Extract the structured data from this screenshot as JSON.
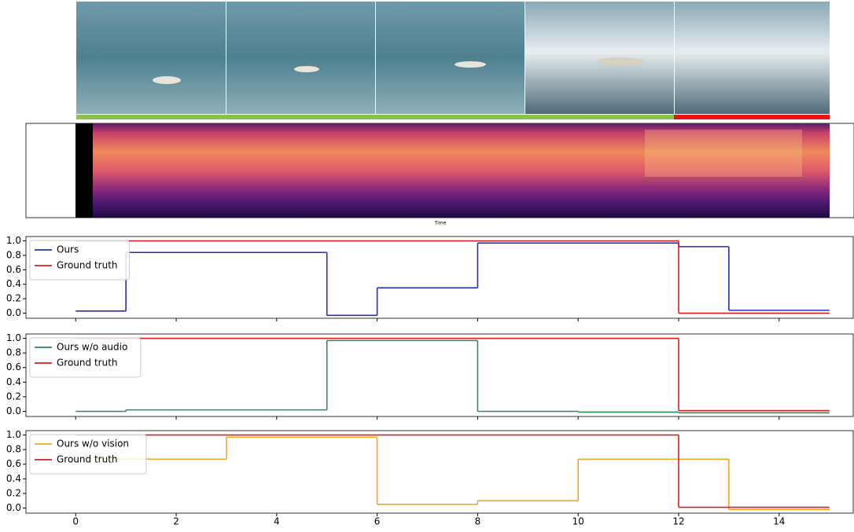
{
  "spectrogram": {
    "xlabel": "Time"
  },
  "chart_data": [
    {
      "type": "step",
      "xlim": [
        -0.99,
        15.49
      ],
      "ylim": [
        -0.07,
        1.06
      ],
      "xticks": [
        0,
        2,
        4,
        6,
        8,
        10,
        12,
        14
      ],
      "yticks": [
        {
          "value": 0,
          "label": "0.0"
        },
        0.2,
        0.4,
        0.6,
        0.8,
        {
          "value": 1,
          "label": "1.0"
        }
      ],
      "legend": "upper left",
      "series": [
        {
          "name": "Ours",
          "color": "#2b2bb5",
          "x": [
            0,
            1,
            5,
            6,
            8,
            12,
            13,
            15
          ],
          "values": [
            0.03,
            0.84,
            -0.03,
            0.35,
            0.97,
            0.92,
            0.04,
            0.04
          ]
        },
        {
          "name": "Ground truth",
          "color": "#d62020",
          "x": [
            0,
            12,
            15
          ],
          "values": [
            1.0,
            0.0,
            0.0
          ]
        }
      ]
    },
    {
      "type": "step",
      "xlim": [
        -0.99,
        15.49
      ],
      "ylim": [
        -0.07,
        1.06
      ],
      "xticks": [
        0,
        2,
        4,
        6,
        8,
        10,
        12,
        14
      ],
      "yticks": [
        {
          "value": 0,
          "label": "0.0"
        },
        0.2,
        0.4,
        0.6,
        0.8,
        {
          "value": 1,
          "label": "1.0"
        }
      ],
      "legend": "upper left",
      "series": [
        {
          "name": "Ours w/o audio",
          "color": "#2e8b57",
          "x": [
            0,
            1,
            5,
            8,
            10,
            12,
            15
          ],
          "values": [
            0.0,
            0.02,
            0.97,
            0.0,
            -0.01,
            -0.02,
            -0.02
          ]
        },
        {
          "name": "Ground truth",
          "color": "#d62020",
          "x": [
            0,
            12,
            15
          ],
          "values": [
            1.0,
            0.01,
            0.01
          ]
        }
      ]
    },
    {
      "type": "step",
      "xlim": [
        -0.99,
        15.49
      ],
      "ylim": [
        -0.07,
        1.06
      ],
      "xticks": [
        0,
        2,
        4,
        6,
        8,
        10,
        12,
        14
      ],
      "yticks": [
        {
          "value": 0,
          "label": "0.0"
        },
        0.2,
        0.4,
        0.6,
        0.8,
        {
          "value": 1,
          "label": "1.0"
        }
      ],
      "legend": "upper left",
      "series": [
        {
          "name": "Ours w/o vision",
          "color": "#f5a623",
          "x": [
            0,
            3,
            6,
            8,
            10,
            13,
            15
          ],
          "values": [
            0.67,
            0.97,
            0.05,
            0.1,
            0.67,
            -0.02,
            -0.02
          ]
        },
        {
          "name": "Ground truth",
          "color": "#d62020",
          "x": [
            0,
            12,
            15
          ],
          "values": [
            1.0,
            0.01,
            0.01
          ]
        }
      ]
    }
  ]
}
